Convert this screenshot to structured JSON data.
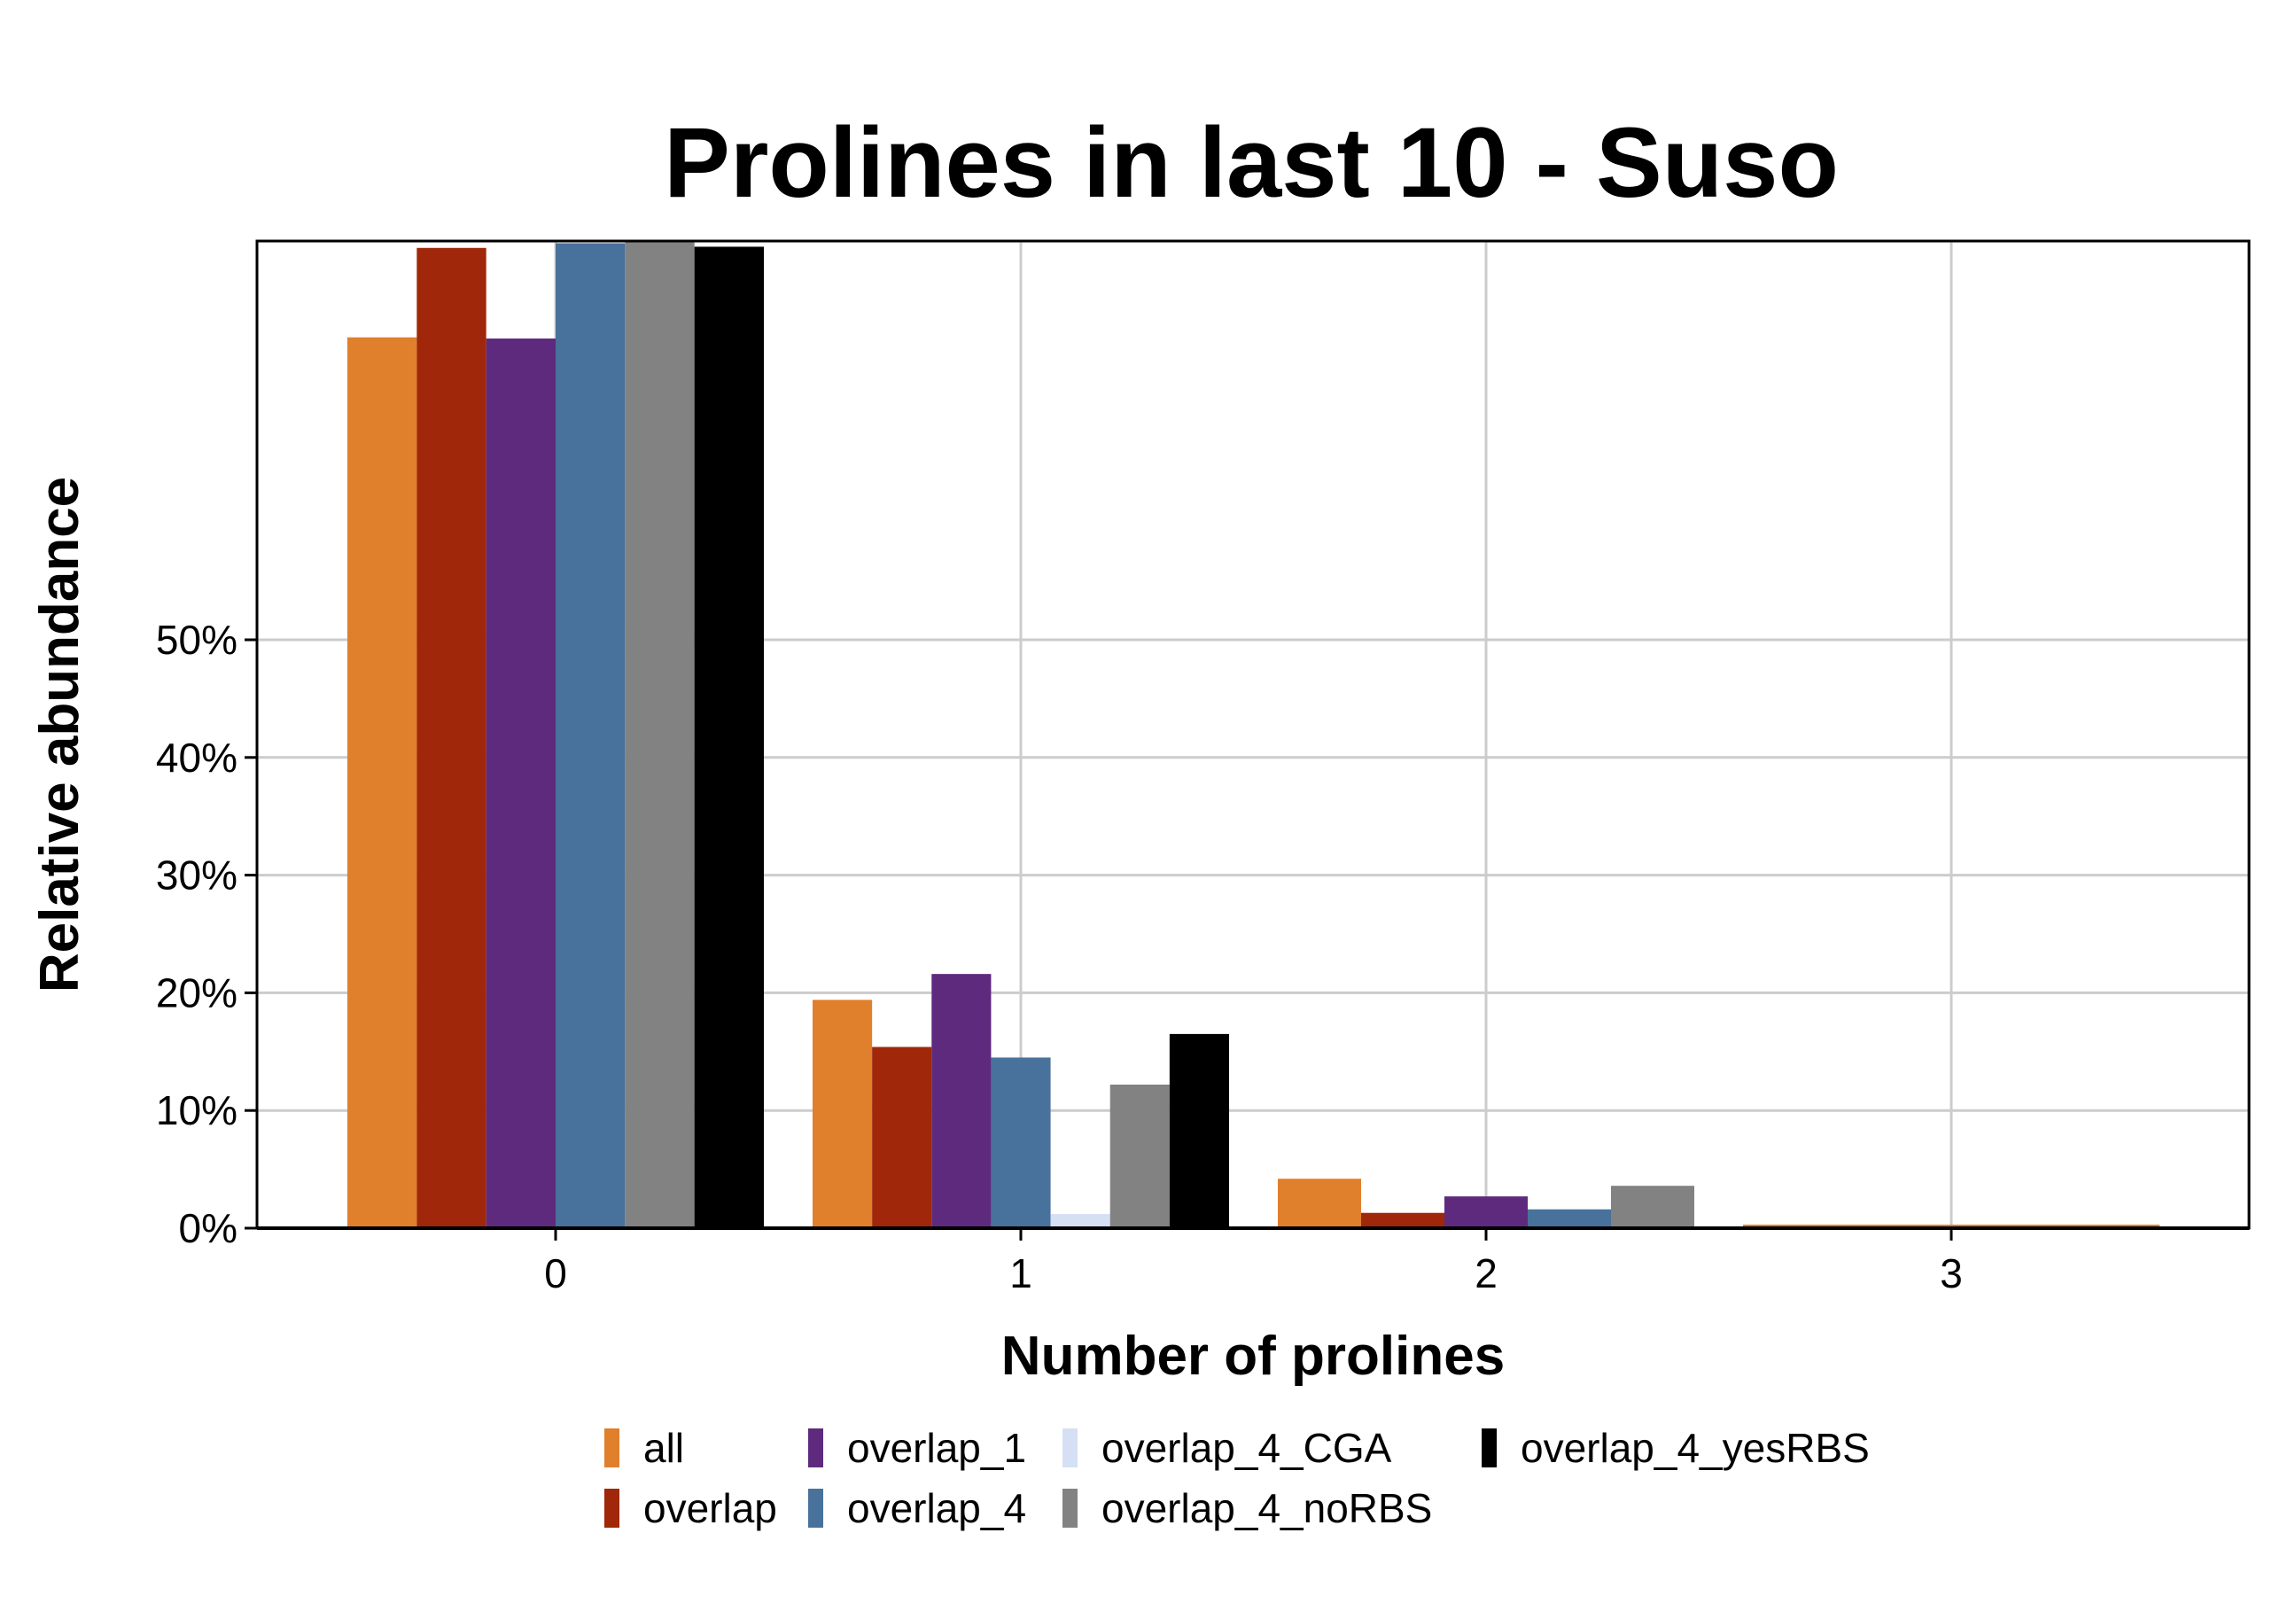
{
  "chart_data": {
    "type": "bar",
    "title": "Prolines in last 10 - Suso",
    "xlabel": "Number of prolines",
    "ylabel": "Relative abundance",
    "categories": [
      "0",
      "1",
      "2",
      "3"
    ],
    "ytick_labels": [
      "0%",
      "10%",
      "20%",
      "30%",
      "40%",
      "50%"
    ],
    "ytick_values": [
      0,
      10,
      20,
      30,
      40,
      50
    ],
    "ylim": [
      0,
      84
    ],
    "grid": true,
    "legend_position": "bottom",
    "series": [
      {
        "name": "all",
        "color": "#E07F2C",
        "values": [
          75.7,
          19.4,
          4.2,
          0.3
        ]
      },
      {
        "name": "overlap",
        "color": "#A02709",
        "values": [
          83.3,
          15.4,
          1.3,
          0
        ]
      },
      {
        "name": "overlap_1",
        "color": "#5E2A7E",
        "values": [
          75.6,
          21.6,
          2.7,
          0
        ]
      },
      {
        "name": "overlap_4",
        "color": "#48729B",
        "values": [
          83.7,
          14.5,
          1.6,
          0
        ]
      },
      {
        "name": "overlap_4_CGA",
        "color": "#D5E0F5",
        "values": [
          0,
          1.2,
          0,
          0
        ]
      },
      {
        "name": "overlap_4_noRBS",
        "color": "#828282",
        "values": [
          84.0,
          12.2,
          3.6,
          0
        ]
      },
      {
        "name": "overlap_4_yesRBS",
        "color": "#000000",
        "values": [
          83.4,
          16.5,
          0,
          0
        ]
      }
    ]
  }
}
